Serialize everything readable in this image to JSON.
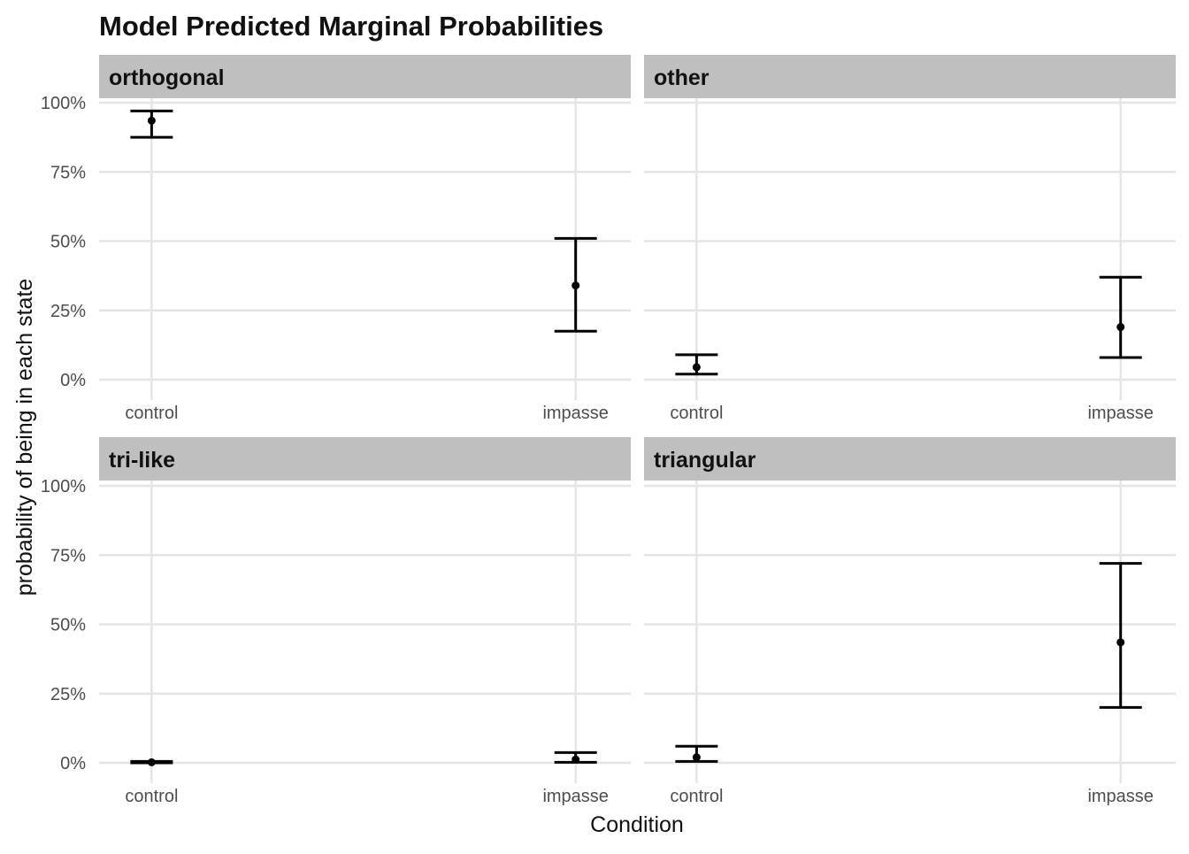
{
  "chart_data": {
    "type": "errorbar",
    "title": "Model Predicted Marginal Probabilities",
    "xlabel": "Condition",
    "ylabel": "probability of being in each state",
    "categories": [
      "control",
      "impasse"
    ],
    "ylim": [
      0,
      1
    ],
    "yticks": [
      0,
      0.25,
      0.5,
      0.75,
      1
    ],
    "ytick_labels": [
      "0%",
      "25%",
      "50%",
      "75%",
      "100%"
    ],
    "grid": true,
    "panels": [
      {
        "label": "orthogonal",
        "points": [
          {
            "x": "control",
            "estimate": 0.935,
            "lower": 0.875,
            "upper": 0.97
          },
          {
            "x": "impasse",
            "estimate": 0.34,
            "lower": 0.175,
            "upper": 0.51
          }
        ]
      },
      {
        "label": "other",
        "points": [
          {
            "x": "control",
            "estimate": 0.045,
            "lower": 0.02,
            "upper": 0.09
          },
          {
            "x": "impasse",
            "estimate": 0.19,
            "lower": 0.08,
            "upper": 0.37
          }
        ]
      },
      {
        "label": "tri-like",
        "points": [
          {
            "x": "control",
            "estimate": 0.002,
            "lower": 0.0,
            "upper": 0.005
          },
          {
            "x": "impasse",
            "estimate": 0.012,
            "lower": 0.002,
            "upper": 0.037
          }
        ]
      },
      {
        "label": "triangular",
        "points": [
          {
            "x": "control",
            "estimate": 0.02,
            "lower": 0.005,
            "upper": 0.06
          },
          {
            "x": "impasse",
            "estimate": 0.435,
            "lower": 0.2,
            "upper": 0.72
          }
        ]
      }
    ]
  }
}
